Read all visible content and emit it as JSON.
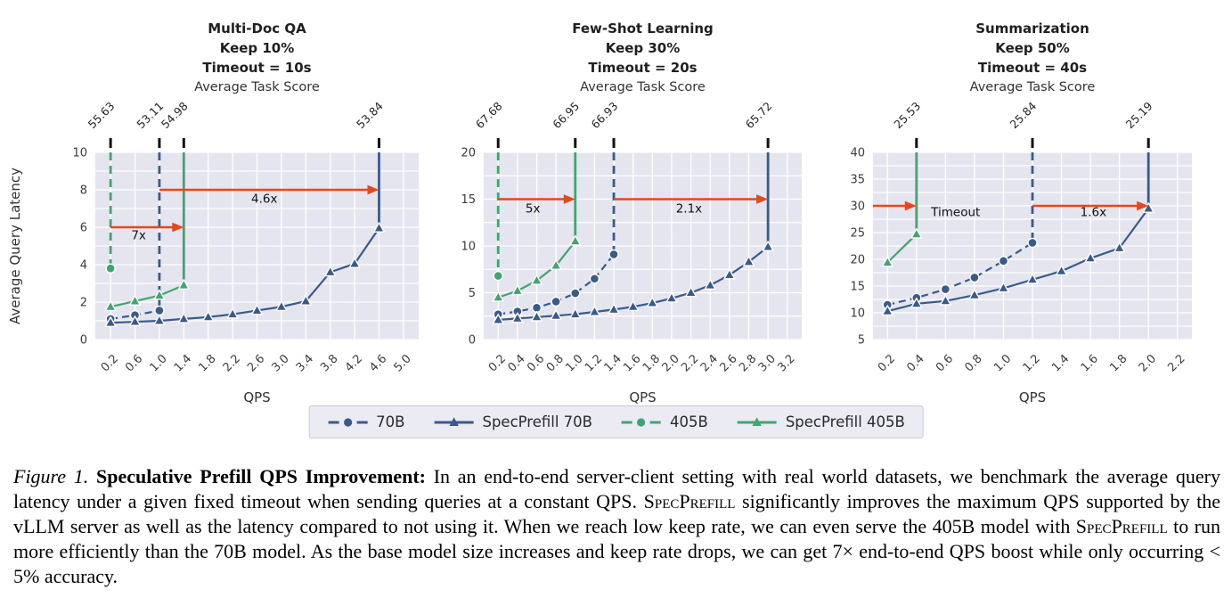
{
  "colors": {
    "blue": "#3a5a8a",
    "green": "#43a46f",
    "arrow": "#e2491c",
    "plot_bg": "#e5e5ef",
    "grid": "#ffffff",
    "legend_bg": "#ebebf3",
    "legend_border": "#c9c9d1"
  },
  "legend": {
    "items": [
      {
        "label": "70B",
        "color": "blue",
        "dash": true,
        "marker": "circle"
      },
      {
        "label": "SpecPrefill 70B",
        "color": "blue",
        "dash": false,
        "marker": "triangle"
      },
      {
        "label": "405B",
        "color": "green",
        "dash": true,
        "marker": "circle"
      },
      {
        "label": "SpecPrefill 405B",
        "color": "green",
        "dash": false,
        "marker": "triangle"
      }
    ]
  },
  "caption": {
    "segments": [
      {
        "style": "italic",
        "text": "Figure 1. "
      },
      {
        "style": "bold",
        "text": "Speculative Prefill QPS Improvement: "
      },
      {
        "style": "normal",
        "text": "In an end-to-end server-client setting with real world datasets, we benchmark the average query latency under a given fixed timeout when sending queries at a constant QPS. "
      },
      {
        "style": "smallcaps",
        "text": "SpecPrefill"
      },
      {
        "style": "normal",
        "text": " significantly improves the maximum QPS supported by the vLLM server as well as the latency compared to not using it. When we reach low keep rate, we can even serve the 405B model with "
      },
      {
        "style": "smallcaps",
        "text": "SpecPrefill"
      },
      {
        "style": "normal",
        "text": " to run more efficiently than the 70B model. As the base model size increases and keep rate drops, we can get 7× end-to-end QPS boost while only occurring < 5% accuracy."
      }
    ]
  },
  "chart_data": [
    {
      "type": "line",
      "title_lines": [
        "Multi-Doc QA",
        "Keep 10%",
        "Timeout = 10s"
      ],
      "subtitle": "Average Task Score",
      "xlabel": "QPS",
      "ylabel": "Average Query Latency",
      "xlim": [
        -0.05,
        5.25
      ],
      "ylim": [
        0,
        10
      ],
      "xticks": [
        0.2,
        0.6,
        1.0,
        1.4,
        1.8,
        2.2,
        2.6,
        3.0,
        3.4,
        3.8,
        4.2,
        4.6,
        5.0
      ],
      "yticks": [
        0,
        2,
        4,
        6,
        8,
        10
      ],
      "grid_y_step": 1,
      "series": [
        {
          "name": "70B",
          "color": "blue",
          "dash": true,
          "marker": "circle",
          "points": [
            [
              0.2,
              1.1
            ],
            [
              0.6,
              1.3
            ],
            [
              1.0,
              1.55
            ]
          ],
          "timeout_x": 1.0,
          "score": "53.11"
        },
        {
          "name": "SpecPrefill 70B",
          "color": "blue",
          "dash": false,
          "marker": "triangle",
          "points": [
            [
              0.2,
              0.9
            ],
            [
              0.6,
              0.95
            ],
            [
              1.0,
              1.0
            ],
            [
              1.4,
              1.1
            ],
            [
              1.8,
              1.2
            ],
            [
              2.2,
              1.35
            ],
            [
              2.6,
              1.55
            ],
            [
              3.0,
              1.75
            ],
            [
              3.4,
              2.05
            ],
            [
              3.8,
              3.6
            ],
            [
              4.2,
              4.05
            ],
            [
              4.6,
              5.95
            ]
          ],
          "timeout_x": 4.6,
          "score": "53.84"
        },
        {
          "name": "405B",
          "color": "green",
          "dash": true,
          "marker": "circle",
          "points": [
            [
              0.2,
              3.8
            ]
          ],
          "timeout_x": 0.2,
          "score": "55.63"
        },
        {
          "name": "SpecPrefill 405B",
          "color": "green",
          "dash": false,
          "marker": "triangle",
          "points": [
            [
              0.2,
              1.75
            ],
            [
              0.6,
              2.05
            ],
            [
              1.0,
              2.35
            ],
            [
              1.4,
              2.9
            ]
          ],
          "timeout_x": 1.4,
          "score": "54.98"
        }
      ],
      "arrows": [
        {
          "y": 6,
          "x1": 0.2,
          "x2": 1.4,
          "label": "7x",
          "label_x": 0.66,
          "label_y": 5.35
        },
        {
          "y": 8,
          "x1": 1.0,
          "x2": 4.6,
          "label": "4.6x",
          "label_x": 2.72,
          "label_y": 7.3
        }
      ]
    },
    {
      "type": "line",
      "title_lines": [
        "Few-Shot Learning",
        "Keep 30%",
        "Timeout = 20s"
      ],
      "subtitle": "Average Task Score",
      "xlabel": "QPS",
      "ylabel": null,
      "xlim": [
        0.05,
        3.35
      ],
      "ylim": [
        0,
        20
      ],
      "xticks": [
        0.2,
        0.4,
        0.6,
        0.8,
        1.0,
        1.2,
        1.4,
        1.6,
        1.8,
        2.0,
        2.2,
        2.4,
        2.6,
        2.8,
        3.0,
        3.2
      ],
      "yticks": [
        0,
        5,
        10,
        15,
        20
      ],
      "grid_y_step": 2.5,
      "series": [
        {
          "name": "70B",
          "color": "blue",
          "dash": true,
          "marker": "circle",
          "points": [
            [
              0.2,
              2.7
            ],
            [
              0.4,
              3.0
            ],
            [
              0.6,
              3.4
            ],
            [
              0.8,
              4.05
            ],
            [
              1.0,
              4.95
            ],
            [
              1.2,
              6.5
            ],
            [
              1.4,
              9.1
            ]
          ],
          "timeout_x": 1.4,
          "score": "66.93"
        },
        {
          "name": "SpecPrefill 70B",
          "color": "blue",
          "dash": false,
          "marker": "triangle",
          "points": [
            [
              0.2,
              2.1
            ],
            [
              0.4,
              2.25
            ],
            [
              0.6,
              2.4
            ],
            [
              0.8,
              2.55
            ],
            [
              1.0,
              2.7
            ],
            [
              1.2,
              2.95
            ],
            [
              1.4,
              3.2
            ],
            [
              1.6,
              3.5
            ],
            [
              1.8,
              3.9
            ],
            [
              2.0,
              4.4
            ],
            [
              2.2,
              5.0
            ],
            [
              2.4,
              5.8
            ],
            [
              2.6,
              6.9
            ],
            [
              2.8,
              8.3
            ],
            [
              3.0,
              9.9
            ]
          ],
          "timeout_x": 3.0,
          "score": "65.72"
        },
        {
          "name": "405B",
          "color": "green",
          "dash": true,
          "marker": "circle",
          "points": [
            [
              0.2,
              6.8
            ]
          ],
          "timeout_x": 0.2,
          "score": "67.68"
        },
        {
          "name": "SpecPrefill 405B",
          "color": "green",
          "dash": false,
          "marker": "triangle",
          "points": [
            [
              0.2,
              4.5
            ],
            [
              0.4,
              5.2
            ],
            [
              0.6,
              6.3
            ],
            [
              0.8,
              7.9
            ],
            [
              1.0,
              10.5
            ]
          ],
          "timeout_x": 1.0,
          "score": "66.95"
        }
      ],
      "arrows": [
        {
          "y": 15,
          "x1": 0.2,
          "x2": 1.0,
          "label": "5x",
          "label_x": 0.56,
          "label_y": 13.55
        },
        {
          "y": 15,
          "x1": 1.4,
          "x2": 3.0,
          "label": "2.1x",
          "label_x": 2.18,
          "label_y": 13.55
        }
      ]
    },
    {
      "type": "line",
      "title_lines": [
        "Summarization",
        "Keep 50%",
        "Timeout = 40s"
      ],
      "subtitle": "Average Task Score",
      "xlabel": "QPS",
      "ylabel": null,
      "xlim": [
        0.1,
        2.3
      ],
      "ylim": [
        5,
        40
      ],
      "xticks": [
        0.2,
        0.4,
        0.6,
        0.8,
        1.0,
        1.2,
        1.4,
        1.6,
        1.8,
        2.0,
        2.2
      ],
      "yticks": [
        5,
        10,
        15,
        20,
        25,
        30,
        35,
        40
      ],
      "grid_y_step": 2.5,
      "series": [
        {
          "name": "70B",
          "color": "blue",
          "dash": true,
          "marker": "circle",
          "points": [
            [
              0.2,
              11.5
            ],
            [
              0.4,
              12.8
            ],
            [
              0.6,
              14.4
            ],
            [
              0.8,
              16.6
            ],
            [
              1.0,
              19.7
            ],
            [
              1.2,
              23.1
            ]
          ],
          "timeout_x": 1.2,
          "score": "25.84"
        },
        {
          "name": "SpecPrefill 70B",
          "color": "blue",
          "dash": false,
          "marker": "triangle",
          "points": [
            [
              0.2,
              10.3
            ],
            [
              0.4,
              11.7
            ],
            [
              0.6,
              12.2
            ],
            [
              0.8,
              13.3
            ],
            [
              1.0,
              14.6
            ],
            [
              1.2,
              16.2
            ],
            [
              1.4,
              17.8
            ],
            [
              1.6,
              20.2
            ],
            [
              1.8,
              22.1
            ],
            [
              2.0,
              29.5
            ]
          ],
          "timeout_x": 2.0,
          "score": "25.19"
        },
        {
          "name": "SpecPrefill 405B",
          "color": "green",
          "dash": false,
          "marker": "triangle",
          "points": [
            [
              0.2,
              19.4
            ],
            [
              0.4,
              24.7
            ]
          ],
          "timeout_x": 0.4,
          "score": "25.53"
        }
      ],
      "arrows": [
        {
          "y": 30,
          "x1": 0.1,
          "x2": 0.4,
          "label": "Timeout",
          "label_x": 0.67,
          "label_y": 28.1
        },
        {
          "y": 30,
          "x1": 1.2,
          "x2": 2.0,
          "label": "1.6x",
          "label_x": 1.62,
          "label_y": 28.1
        }
      ]
    }
  ]
}
